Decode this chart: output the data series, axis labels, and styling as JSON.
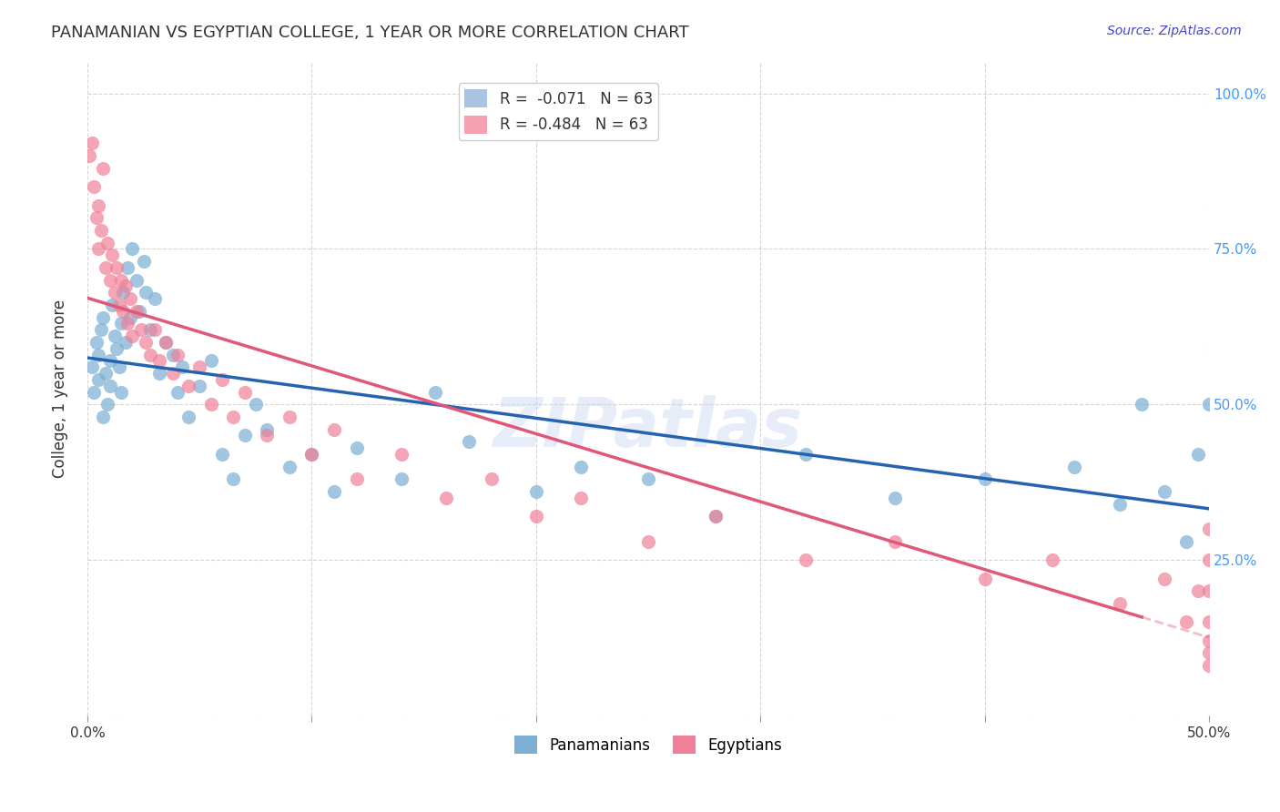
{
  "title": "PANAMANIAN VS EGYPTIAN COLLEGE, 1 YEAR OR MORE CORRELATION CHART",
  "source": "Source: ZipAtlas.com",
  "ylabel": "College, 1 year or more",
  "legend_blue_label": "R =  -0.071   N = 63",
  "legend_pink_label": "R = -0.484   N = 63",
  "legend_blue_name": "Panamanians",
  "legend_pink_name": "Egyptians",
  "watermark": "ZIPatlas",
  "blue_legend_color": "#a8c4e0",
  "pink_legend_color": "#f4a0b0",
  "blue_line_color": "#2563b0",
  "pink_line_color": "#e05878",
  "blue_scatter_color": "#7bafd4",
  "pink_scatter_color": "#f08098",
  "background_color": "#ffffff",
  "grid_color": "#cccccc",
  "title_color": "#333333",
  "source_color": "#4444cc",
  "axis_label_color": "#333333",
  "right_tick_color": "#4499ff",
  "r_value_color": "#cc0066",
  "xmin": 0.0,
  "xmax": 0.5,
  "ymin": 0.0,
  "ymax": 1.05,
  "blue_x": [
    0.002,
    0.003,
    0.004,
    0.005,
    0.005,
    0.006,
    0.007,
    0.007,
    0.008,
    0.009,
    0.01,
    0.01,
    0.011,
    0.012,
    0.013,
    0.014,
    0.015,
    0.015,
    0.016,
    0.017,
    0.018,
    0.019,
    0.02,
    0.022,
    0.023,
    0.025,
    0.026,
    0.028,
    0.03,
    0.032,
    0.035,
    0.038,
    0.04,
    0.042,
    0.045,
    0.05,
    0.055,
    0.06,
    0.065,
    0.07,
    0.075,
    0.08,
    0.09,
    0.1,
    0.11,
    0.12,
    0.14,
    0.155,
    0.17,
    0.2,
    0.22,
    0.25,
    0.28,
    0.32,
    0.36,
    0.4,
    0.44,
    0.46,
    0.47,
    0.48,
    0.49,
    0.495,
    0.5
  ],
  "blue_y": [
    0.56,
    0.52,
    0.6,
    0.58,
    0.54,
    0.62,
    0.48,
    0.64,
    0.55,
    0.5,
    0.57,
    0.53,
    0.66,
    0.61,
    0.59,
    0.56,
    0.63,
    0.52,
    0.68,
    0.6,
    0.72,
    0.64,
    0.75,
    0.7,
    0.65,
    0.73,
    0.68,
    0.62,
    0.67,
    0.55,
    0.6,
    0.58,
    0.52,
    0.56,
    0.48,
    0.53,
    0.57,
    0.42,
    0.38,
    0.45,
    0.5,
    0.46,
    0.4,
    0.42,
    0.36,
    0.43,
    0.38,
    0.52,
    0.44,
    0.36,
    0.4,
    0.38,
    0.32,
    0.42,
    0.35,
    0.38,
    0.4,
    0.34,
    0.5,
    0.36,
    0.28,
    0.42,
    0.5
  ],
  "pink_x": [
    0.001,
    0.002,
    0.003,
    0.004,
    0.005,
    0.005,
    0.006,
    0.007,
    0.008,
    0.009,
    0.01,
    0.011,
    0.012,
    0.013,
    0.014,
    0.015,
    0.016,
    0.017,
    0.018,
    0.019,
    0.02,
    0.022,
    0.024,
    0.026,
    0.028,
    0.03,
    0.032,
    0.035,
    0.038,
    0.04,
    0.045,
    0.05,
    0.055,
    0.06,
    0.065,
    0.07,
    0.08,
    0.09,
    0.1,
    0.11,
    0.12,
    0.14,
    0.16,
    0.18,
    0.2,
    0.22,
    0.25,
    0.28,
    0.32,
    0.36,
    0.4,
    0.43,
    0.46,
    0.48,
    0.49,
    0.495,
    0.5,
    0.5,
    0.5,
    0.5,
    0.5,
    0.5,
    0.5
  ],
  "pink_y": [
    0.9,
    0.92,
    0.85,
    0.8,
    0.75,
    0.82,
    0.78,
    0.88,
    0.72,
    0.76,
    0.7,
    0.74,
    0.68,
    0.72,
    0.66,
    0.7,
    0.65,
    0.69,
    0.63,
    0.67,
    0.61,
    0.65,
    0.62,
    0.6,
    0.58,
    0.62,
    0.57,
    0.6,
    0.55,
    0.58,
    0.53,
    0.56,
    0.5,
    0.54,
    0.48,
    0.52,
    0.45,
    0.48,
    0.42,
    0.46,
    0.38,
    0.42,
    0.35,
    0.38,
    0.32,
    0.35,
    0.28,
    0.32,
    0.25,
    0.28,
    0.22,
    0.25,
    0.18,
    0.22,
    0.15,
    0.2,
    0.12,
    0.3,
    0.25,
    0.2,
    0.1,
    0.15,
    0.08
  ]
}
